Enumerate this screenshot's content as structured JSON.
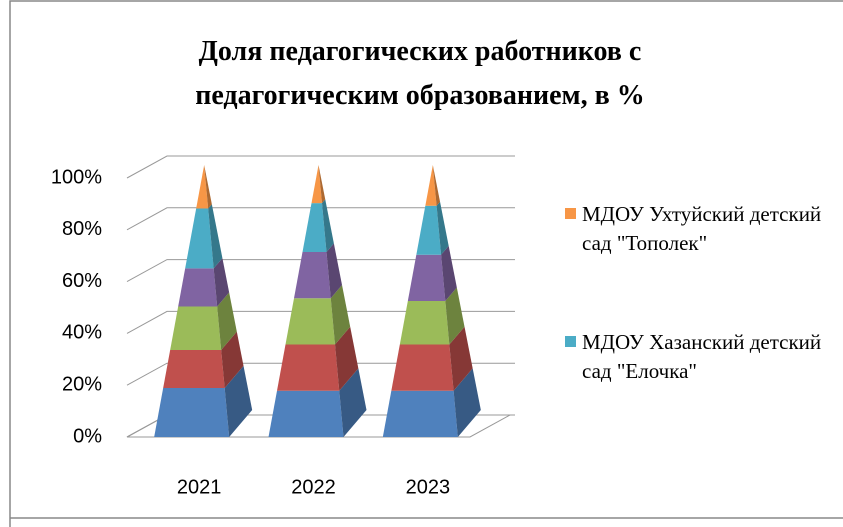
{
  "chart_data": {
    "type": "pyramid-stacked-100",
    "title": "Доля педагогических работников с педагогическим образованием, в %",
    "categories": [
      "2021",
      "2022",
      "2023"
    ],
    "series": [
      {
        "color": "#4f81bd",
        "values": [
          18,
          17,
          17
        ]
      },
      {
        "color": "#c0504d",
        "values": [
          14,
          17,
          17
        ]
      },
      {
        "color": "#9bbb59",
        "values": [
          16,
          17,
          16
        ]
      },
      {
        "color": "#8064a2",
        "values": [
          14,
          17,
          17
        ]
      },
      {
        "name": "МДОУ Хазанский детский сад \"Елочка\"",
        "color": "#4bacc6",
        "values": [
          22,
          18,
          18
        ]
      },
      {
        "name": "МДОУ Ухтуйский детский сад \"Тополек\"",
        "color": "#f79646",
        "values": [
          16,
          14,
          15
        ]
      }
    ],
    "ylim": [
      0,
      100
    ],
    "yticks": [
      {
        "value": 0,
        "label": "0%"
      },
      {
        "value": 20,
        "label": "20%"
      },
      {
        "value": 40,
        "label": "40%"
      },
      {
        "value": 60,
        "label": "60%"
      },
      {
        "value": 80,
        "label": "80%"
      },
      {
        "value": 100,
        "label": "100%"
      }
    ],
    "grid": true,
    "legend": "right"
  }
}
